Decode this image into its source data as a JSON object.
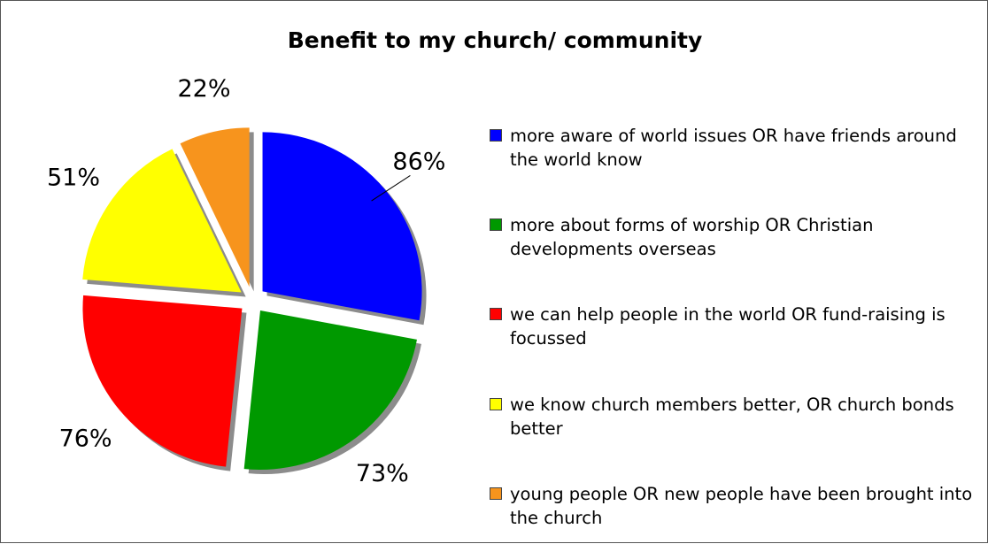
{
  "chart_data": {
    "type": "pie",
    "title": "Benefit to my church/ community",
    "exploded": true,
    "legend_position": "right",
    "slices": [
      {
        "name": "more aware of world issues OR have friends around the world know",
        "value": 86,
        "label": "86%",
        "color": "#0000ff"
      },
      {
        "name": "more about forms of worship OR Christian developments overseas",
        "value": 73,
        "label": "73%",
        "color": "#009900"
      },
      {
        "name": "we can help people in the world OR fund-raising is focussed",
        "value": 76,
        "label": "76%",
        "color": "#ff0000"
      },
      {
        "name": "we know church members better, OR church bonds better",
        "value": 51,
        "label": "51%",
        "color": "#ffff00"
      },
      {
        "name": "young people OR new people have been brought into the church",
        "value": 22,
        "label": "22%",
        "color": "#f7941d"
      }
    ]
  }
}
